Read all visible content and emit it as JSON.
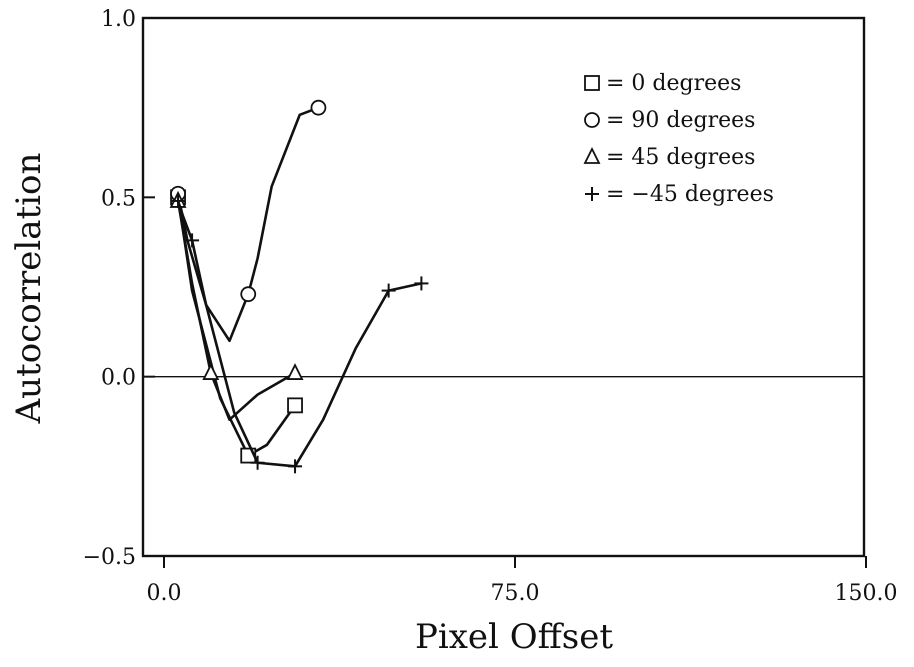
{
  "chart_data": {
    "type": "line",
    "title": "",
    "xlabel": "Pixel Offset",
    "ylabel": "Autocorrelation",
    "xlim": [
      0,
      150
    ],
    "ylim": [
      -0.5,
      1.0
    ],
    "x_tick_labels": [
      "0.0",
      "75.0",
      "150.0"
    ],
    "x_ticks": [
      0,
      75,
      150
    ],
    "y_tick_labels": [
      "1.0",
      "0.5",
      "0.0",
      "−0.5"
    ],
    "y_ticks": [
      1.0,
      0.5,
      0.0,
      -0.5
    ],
    "grid": false,
    "zero_line": true,
    "legend_position": "top-right",
    "series": [
      {
        "name": "0 degrees",
        "legend_label": "=   0 degrees",
        "marker": "square",
        "x": [
          3,
          6,
          12,
          18,
          22,
          28
        ],
        "y": [
          0.5,
          0.24,
          -0.06,
          -0.22,
          -0.19,
          -0.08
        ],
        "marked_points": [
          0,
          3,
          5
        ]
      },
      {
        "name": "90 degrees",
        "legend_label": "=  90 degrees",
        "marker": "circle",
        "x": [
          3,
          5,
          9,
          14,
          18,
          20,
          23,
          29,
          33
        ],
        "y": [
          0.51,
          0.38,
          0.2,
          0.1,
          0.23,
          0.33,
          0.53,
          0.73,
          0.75
        ],
        "marked_points": [
          0,
          4,
          8
        ]
      },
      {
        "name": "45 degrees",
        "legend_label": "=  45 degrees",
        "marker": "triangle",
        "x": [
          3,
          6,
          10,
          14,
          20,
          28
        ],
        "y": [
          0.49,
          0.26,
          0.01,
          -0.12,
          -0.05,
          0.01
        ],
        "marked_points": [
          0,
          2,
          5
        ]
      },
      {
        "name": "-45 degrees",
        "legend_label": "= −45 degrees",
        "marker": "plus",
        "x": [
          3,
          4,
          6,
          9,
          15,
          20,
          28,
          34,
          41,
          48,
          55
        ],
        "y": [
          0.49,
          0.45,
          0.38,
          0.2,
          -0.1,
          -0.24,
          -0.25,
          -0.12,
          0.08,
          0.24,
          0.26
        ],
        "marked_points": [
          0,
          2,
          5,
          6,
          9,
          10
        ]
      }
    ]
  }
}
